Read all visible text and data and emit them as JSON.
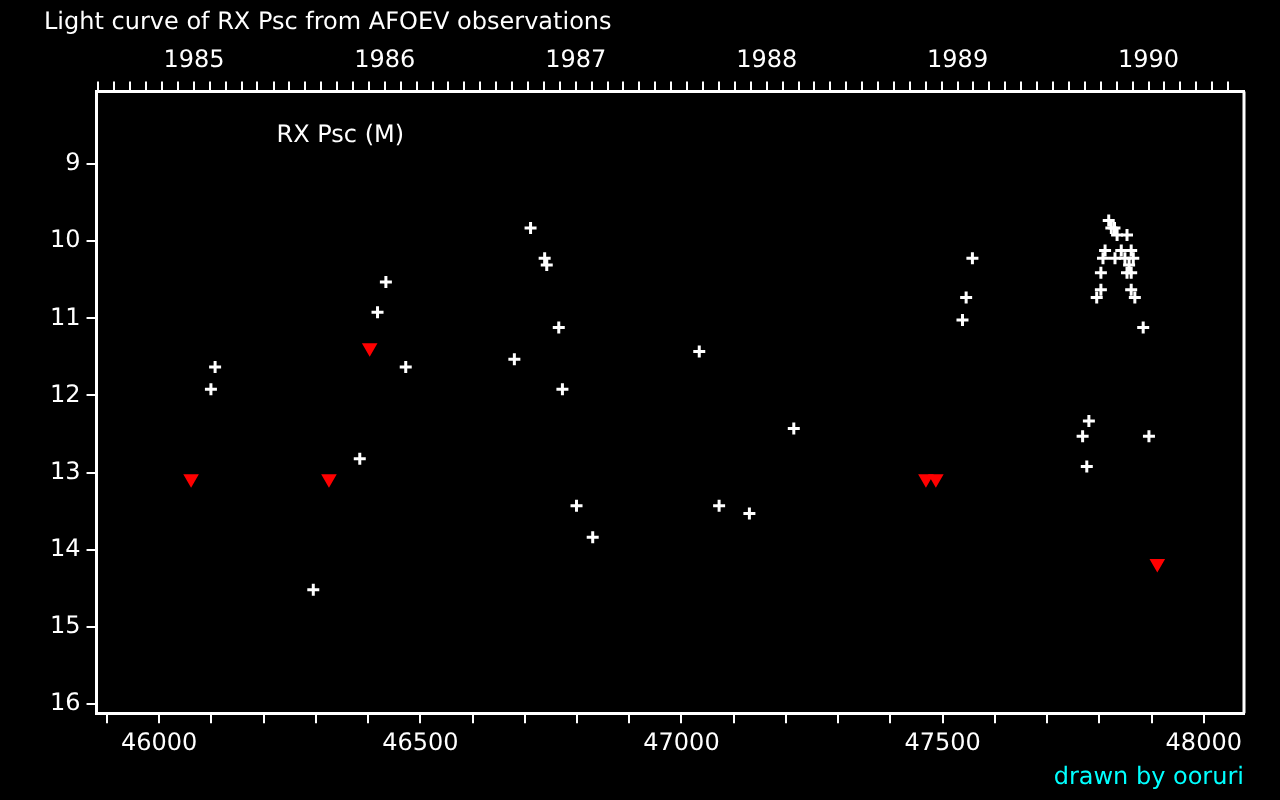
{
  "chart_data": {
    "type": "scatter",
    "title": "Light curve of RX Psc from AFOEV observations",
    "annotations": [
      "RX Psc (M)",
      "drawn by ooruri"
    ],
    "xlim": [
      45880,
      48077
    ],
    "xticks": [
      {
        "value": 45900,
        "label": null
      },
      46000,
      {
        "value": 46100,
        "label": null
      },
      {
        "value": 46200,
        "label": null
      },
      {
        "value": 46300,
        "label": null
      },
      {
        "value": 46400,
        "label": null
      },
      46500,
      {
        "value": 46600,
        "label": null
      },
      {
        "value": 46700,
        "label": null
      },
      {
        "value": 46800,
        "label": null
      },
      {
        "value": 46900,
        "label": null
      },
      47000,
      {
        "value": 47100,
        "label": null
      },
      {
        "value": 47200,
        "label": null
      },
      {
        "value": 47300,
        "label": null
      },
      {
        "value": 47400,
        "label": null
      },
      47500,
      {
        "value": 47600,
        "label": null
      },
      {
        "value": 47700,
        "label": null
      },
      {
        "value": 47800,
        "label": null
      },
      {
        "value": 47900,
        "label": null
      },
      48000
    ],
    "x2lim": [
      1984.49,
      1990.5
    ],
    "x2ticks": [
      {
        "value": 1984.5,
        "label": null
      },
      {
        "value": 1984.583,
        "label": null
      },
      {
        "value": 1984.667,
        "label": null
      },
      {
        "value": 1984.75,
        "label": null
      },
      {
        "value": 1984.833,
        "label": null
      },
      {
        "value": 1984.917,
        "label": null
      },
      1985,
      {
        "value": 1985.083,
        "label": null
      },
      {
        "value": 1985.167,
        "label": null
      },
      {
        "value": 1985.25,
        "label": null
      },
      {
        "value": 1985.333,
        "label": null
      },
      {
        "value": 1985.417,
        "label": null
      },
      {
        "value": 1985.5,
        "label": null
      },
      {
        "value": 1985.583,
        "label": null
      },
      {
        "value": 1985.667,
        "label": null
      },
      {
        "value": 1985.75,
        "label": null
      },
      {
        "value": 1985.833,
        "label": null
      },
      {
        "value": 1985.917,
        "label": null
      },
      1986,
      {
        "value": 1986.083,
        "label": null
      },
      {
        "value": 1986.167,
        "label": null
      },
      {
        "value": 1986.25,
        "label": null
      },
      {
        "value": 1986.333,
        "label": null
      },
      {
        "value": 1986.417,
        "label": null
      },
      {
        "value": 1986.5,
        "label": null
      },
      {
        "value": 1986.583,
        "label": null
      },
      {
        "value": 1986.667,
        "label": null
      },
      {
        "value": 1986.75,
        "label": null
      },
      {
        "value": 1986.833,
        "label": null
      },
      {
        "value": 1986.917,
        "label": null
      },
      1987,
      {
        "value": 1987.083,
        "label": null
      },
      {
        "value": 1987.167,
        "label": null
      },
      {
        "value": 1987.25,
        "label": null
      },
      {
        "value": 1987.333,
        "label": null
      },
      {
        "value": 1987.417,
        "label": null
      },
      {
        "value": 1987.5,
        "label": null
      },
      {
        "value": 1987.583,
        "label": null
      },
      {
        "value": 1987.667,
        "label": null
      },
      {
        "value": 1987.75,
        "label": null
      },
      {
        "value": 1987.833,
        "label": null
      },
      {
        "value": 1987.917,
        "label": null
      },
      1988,
      {
        "value": 1988.083,
        "label": null
      },
      {
        "value": 1988.167,
        "label": null
      },
      {
        "value": 1988.25,
        "label": null
      },
      {
        "value": 1988.333,
        "label": null
      },
      {
        "value": 1988.417,
        "label": null
      },
      {
        "value": 1988.5,
        "label": null
      },
      {
        "value": 1988.583,
        "label": null
      },
      {
        "value": 1988.667,
        "label": null
      },
      {
        "value": 1988.75,
        "label": null
      },
      {
        "value": 1988.833,
        "label": null
      },
      {
        "value": 1988.917,
        "label": null
      },
      1989,
      {
        "value": 1989.083,
        "label": null
      },
      {
        "value": 1989.167,
        "label": null
      },
      {
        "value": 1989.25,
        "label": null
      },
      {
        "value": 1989.333,
        "label": null
      },
      {
        "value": 1989.417,
        "label": null
      },
      {
        "value": 1989.5,
        "label": null
      },
      {
        "value": 1989.583,
        "label": null
      },
      {
        "value": 1989.667,
        "label": null
      },
      {
        "value": 1989.75,
        "label": null
      },
      {
        "value": 1989.833,
        "label": null
      },
      {
        "value": 1989.917,
        "label": null
      },
      1990,
      {
        "value": 1990.083,
        "label": null
      },
      {
        "value": 1990.167,
        "label": null
      },
      {
        "value": 1990.25,
        "label": null
      },
      {
        "value": 1990.333,
        "label": null
      },
      {
        "value": 1990.417,
        "label": null
      }
    ],
    "ylim": [
      16.12,
      8.06
    ],
    "yticks": [
      9,
      10,
      11,
      12,
      13,
      14,
      15,
      16
    ],
    "series": [
      {
        "color": "#ffffff",
        "marker": "cross",
        "x": [
          46099,
          46107,
          46295,
          46384,
          46418,
          46434,
          46472,
          46680,
          46711,
          46738,
          46742,
          46765,
          46772,
          46799,
          46830,
          47034,
          47072,
          47130,
          47215,
          47538,
          47545,
          47557,
          47768,
          47776,
          47780,
          47795,
          47803,
          47803,
          47807,
          47811,
          47818,
          47823,
          47829,
          47830,
          47834,
          47842,
          47849,
          47853,
          47853,
          47857,
          47861,
          47861,
          47861,
          47865,
          47868,
          47884,
          47895
        ],
        "values": [
          11.92,
          11.63,
          14.52,
          12.82,
          10.92,
          10.53,
          11.63,
          11.53,
          9.83,
          10.22,
          10.31,
          11.12,
          11.92,
          13.43,
          13.84,
          11.43,
          13.43,
          13.53,
          12.43,
          11.02,
          10.73,
          10.22,
          12.53,
          12.92,
          12.33,
          10.73,
          10.41,
          10.63,
          10.22,
          10.12,
          9.73,
          9.83,
          9.83,
          10.22,
          9.92,
          10.12,
          10.22,
          9.92,
          10.41,
          10.31,
          10.12,
          10.41,
          10.63,
          10.22,
          10.73,
          11.12,
          12.53
        ]
      },
      {
        "color": "#ff0000",
        "marker": "triangle",
        "x": [
          46061,
          46325,
          46403,
          47468,
          47487,
          47911
        ],
        "values": [
          13.08,
          13.08,
          11.38,
          13.08,
          13.08,
          14.18
        ]
      }
    ]
  }
}
